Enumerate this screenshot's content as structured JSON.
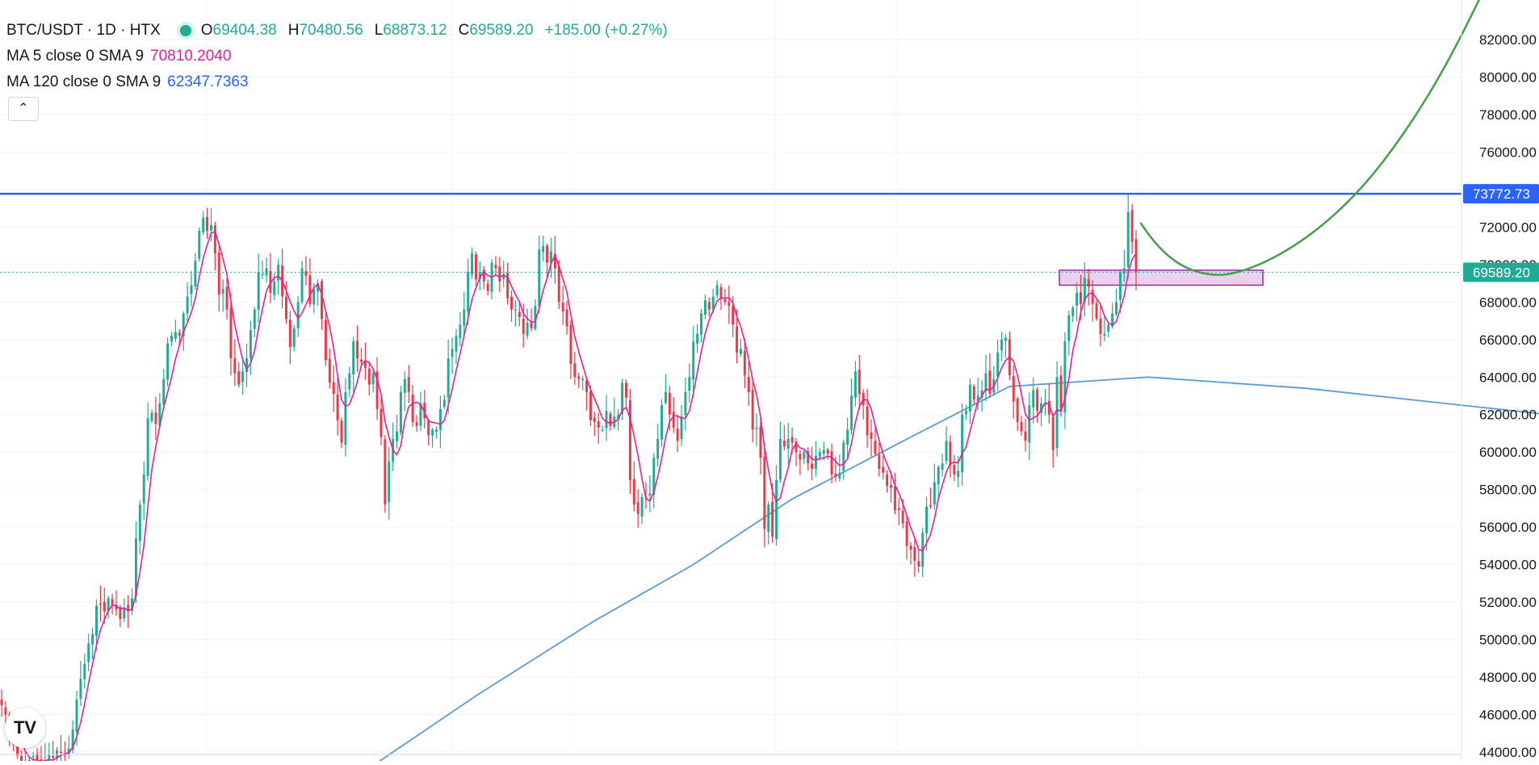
{
  "legend": {
    "symbol": "BTC/USDT · 1D · HTX",
    "open_label": "O",
    "open": "69404.38",
    "high_label": "H",
    "high": "70480.56",
    "low_label": "L",
    "low": "68873.12",
    "close_label": "C",
    "close": "69589.20",
    "change": "+185.00 (+0.27%)",
    "ma5_label": "MA 5 close 0 SMA 9",
    "ma5_value": "70810.2040",
    "ma120_label": "MA 120 close 0 SMA 9",
    "ma120_value": "62347.7363",
    "collapse_icon": "chevron-up-icon"
  },
  "logo_text": "TV",
  "colors": {
    "up": "#22ab94",
    "down": "#f23645",
    "ma5": "#e91e9c",
    "ma120": "#2962ff",
    "resistance": "#2962ff",
    "projection": "#43a047",
    "zone_fill": "#e1bee7",
    "zone_border": "#9c27b0"
  },
  "chart_data": {
    "type": "candlestick",
    "symbol": "BTC/USDT",
    "interval": "1D",
    "exchange": "HTX",
    "y_axis_ticks": [
      "82000.00",
      "80000.00",
      "78000.00",
      "76000.00",
      "74000.00",
      "72000.00",
      "70000.00",
      "68000.00",
      "66000.00",
      "64000.00",
      "62000.00",
      "60000.00",
      "58000.00",
      "56000.00",
      "54000.00",
      "52000.00",
      "50000.00",
      "48000.00",
      "46000.00",
      "44000.00"
    ],
    "ylim": [
      43000,
      83000
    ],
    "grid": true,
    "price_labels": [
      {
        "value": 73772.73,
        "text": "73772.73",
        "color": "#2962ff"
      },
      {
        "value": 69589.2,
        "text": "69589.20",
        "color": "#22ab94"
      }
    ],
    "last_price": 69589.2,
    "resistance_level": 73772.73,
    "support_zone": [
      68900,
      69700
    ],
    "close_series": [
      46500,
      46000,
      45200,
      44400,
      43800,
      43500,
      43300,
      43600,
      43800,
      43600,
      43200,
      43500,
      43900,
      43700,
      44100,
      44000,
      43800,
      44200,
      45200,
      46800,
      47900,
      48700,
      49800,
      50300,
      51800,
      51900,
      51500,
      52200,
      51800,
      51600,
      51100,
      51700,
      51500,
      52200,
      55400,
      57200,
      58800,
      61800,
      62100,
      61500,
      62600,
      63900,
      65800,
      66200,
      66400,
      66200,
      67400,
      68300,
      68900,
      70200,
      71800,
      72500,
      71800,
      72100,
      70600,
      68400,
      68700,
      67600,
      65000,
      64200,
      63600,
      64300,
      65000,
      66500,
      67600,
      69600,
      69500,
      69800,
      68500,
      69100,
      70000,
      68300,
      67100,
      65600,
      66600,
      68000,
      69800,
      69400,
      67900,
      68700,
      69000,
      67100,
      64900,
      63700,
      63100,
      61700,
      60500,
      63200,
      64200,
      65900,
      65000,
      64800,
      64500,
      63600,
      64200,
      62300,
      60800,
      57200,
      59500,
      60700,
      61100,
      63200,
      63900,
      63200,
      61600,
      61400,
      62600,
      61800,
      60900,
      61200,
      61200,
      62300,
      62800,
      65000,
      65500,
      66200,
      66800,
      67600,
      69600,
      70600,
      69200,
      69600,
      69100,
      68600,
      70100,
      69800,
      69100,
      69500,
      68200,
      67600,
      67600,
      67200,
      66300,
      66900,
      66600,
      67800,
      70800,
      71000,
      70100,
      70700,
      69800,
      68000,
      67500,
      66700,
      64700,
      64000,
      63900,
      63900,
      63200,
      61700,
      61600,
      61300,
      61200,
      62200,
      61400,
      61900,
      62000,
      63700,
      62900,
      58500,
      57200,
      56700,
      57600,
      57600,
      57800,
      59700,
      60700,
      62500,
      63200,
      62000,
      61300,
      60600,
      61900,
      63200,
      64000,
      65900,
      66300,
      67400,
      68100,
      67600,
      68300,
      68900,
      68200,
      68000,
      67800,
      66800,
      65300,
      65500,
      64100,
      63200,
      61200,
      61300,
      59700,
      55900,
      57200,
      55500,
      58500,
      60700,
      60300,
      60700,
      60500,
      60000,
      59600,
      60000,
      59400,
      59100,
      59800,
      60000,
      60100,
      59900,
      58800,
      58700,
      58900,
      60500,
      61200,
      63000,
      64300,
      63100,
      62500,
      60900,
      60700,
      59900,
      59100,
      58900,
      58200,
      58100,
      56900,
      56900,
      56200,
      55000,
      54800,
      54200,
      53900,
      55700,
      57100,
      57100,
      58400,
      59200,
      59400,
      60600,
      59300,
      58800,
      59000,
      62000,
      62200,
      63600,
      62800,
      63000,
      63300,
      64200,
      63100,
      63900,
      65300,
      66000,
      66100,
      64100,
      62700,
      61600,
      61100,
      60600,
      62500,
      63300,
      62200,
      62600,
      62600,
      62000,
      60100,
      64000,
      62200,
      65900,
      67300,
      67700,
      68500,
      67900,
      69300,
      68800,
      67900,
      67100,
      66300,
      66300,
      66800,
      67400,
      68000,
      69600,
      69800,
      72800,
      71200,
      69589.2
    ],
    "ma5_last": 70810.204,
    "ma120_last": 62347.7363,
    "projection": {
      "description_hidden": true,
      "points": [
        [
          0,
          72000
        ],
        [
          5,
          69800
        ],
        [
          10,
          69300
        ],
        [
          20,
          70500
        ],
        [
          30,
          73772.73
        ],
        [
          45,
          83000
        ]
      ]
    }
  }
}
